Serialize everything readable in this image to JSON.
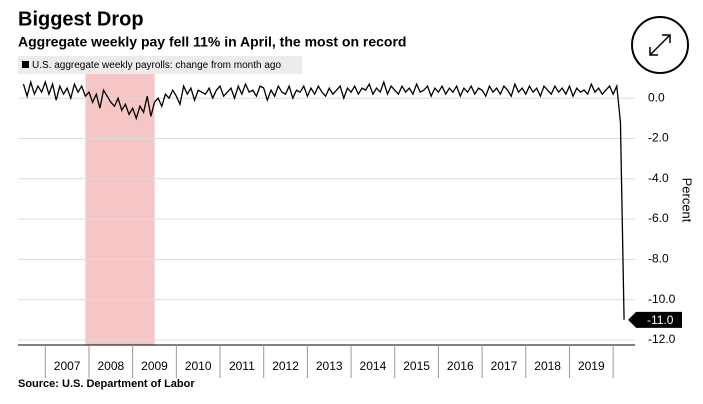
{
  "chart_data": {
    "type": "line",
    "title": "Biggest Drop",
    "subtitle": "Aggregate weekly pay fell 11% in April, the most on record",
    "y_label": "Percent",
    "source": "Source: U.S. Department of Labor",
    "end_label": "-11.0",
    "recession": [
      2007.917,
      2009.5
    ],
    "xlim": [
      2006.375,
      2020.5
    ],
    "ylim": [
      -12.25,
      1.3
    ],
    "yticks": [
      {
        "value": 0,
        "label": "0.0"
      },
      {
        "value": -2,
        "label": "-2.0"
      },
      {
        "value": -4,
        "label": "-4.0"
      },
      {
        "value": -6,
        "label": "-6.0"
      },
      {
        "value": -8,
        "label": "-8.0"
      },
      {
        "value": -10,
        "label": "-10.0"
      },
      {
        "value": -12,
        "label": "-12.0"
      }
    ],
    "xticks": [
      {
        "value": 2007,
        "label": "2007"
      },
      {
        "value": 2008,
        "label": "2008"
      },
      {
        "value": 2009,
        "label": "2009"
      },
      {
        "value": 2010,
        "label": "2010"
      },
      {
        "value": 2011,
        "label": "2011"
      },
      {
        "value": 2012,
        "label": "2012"
      },
      {
        "value": 2013,
        "label": "2013"
      },
      {
        "value": 2014,
        "label": "2014"
      },
      {
        "value": 2015,
        "label": "2015"
      },
      {
        "value": 2016,
        "label": "2016"
      },
      {
        "value": 2017,
        "label": "2017"
      },
      {
        "value": 2018,
        "label": "2018"
      },
      {
        "value": 2019,
        "label": "2019"
      }
    ],
    "grid": true,
    "legend": "top-left",
    "x": [
      2006.5,
      2006.583,
      2006.667,
      2006.75,
      2006.833,
      2006.917,
      2007,
      2007.083,
      2007.167,
      2007.25,
      2007.333,
      2007.417,
      2007.5,
      2007.583,
      2007.667,
      2007.75,
      2007.833,
      2007.917,
      2008,
      2008.083,
      2008.167,
      2008.25,
      2008.333,
      2008.417,
      2008.5,
      2008.583,
      2008.667,
      2008.75,
      2008.833,
      2008.917,
      2009,
      2009.083,
      2009.167,
      2009.25,
      2009.333,
      2009.417,
      2009.5,
      2009.583,
      2009.667,
      2009.75,
      2009.833,
      2009.917,
      2010,
      2010.083,
      2010.167,
      2010.25,
      2010.333,
      2010.417,
      2010.5,
      2010.583,
      2010.667,
      2010.75,
      2010.833,
      2010.917,
      2011,
      2011.083,
      2011.167,
      2011.25,
      2011.333,
      2011.417,
      2011.5,
      2011.583,
      2011.667,
      2011.75,
      2011.833,
      2011.917,
      2012,
      2012.083,
      2012.167,
      2012.25,
      2012.333,
      2012.417,
      2012.5,
      2012.583,
      2012.667,
      2012.75,
      2012.833,
      2012.917,
      2013,
      2013.083,
      2013.167,
      2013.25,
      2013.333,
      2013.417,
      2013.5,
      2013.583,
      2013.667,
      2013.75,
      2013.833,
      2013.917,
      2014,
      2014.083,
      2014.167,
      2014.25,
      2014.333,
      2014.417,
      2014.5,
      2014.583,
      2014.667,
      2014.75,
      2014.833,
      2014.917,
      2015,
      2015.083,
      2015.167,
      2015.25,
      2015.333,
      2015.417,
      2015.5,
      2015.583,
      2015.667,
      2015.75,
      2015.833,
      2015.917,
      2016,
      2016.083,
      2016.167,
      2016.25,
      2016.333,
      2016.417,
      2016.5,
      2016.583,
      2016.667,
      2016.75,
      2016.833,
      2016.917,
      2017,
      2017.083,
      2017.167,
      2017.25,
      2017.333,
      2017.417,
      2017.5,
      2017.583,
      2017.667,
      2017.75,
      2017.833,
      2017.917,
      2018,
      2018.083,
      2018.167,
      2018.25,
      2018.333,
      2018.417,
      2018.5,
      2018.583,
      2018.667,
      2018.75,
      2018.833,
      2018.917,
      2019,
      2019.083,
      2019.167,
      2019.25,
      2019.333,
      2019.417,
      2019.5,
      2019.583,
      2019.667,
      2019.75,
      2019.833,
      2019.917,
      2020,
      2020.083,
      2020.167,
      2020.25
    ],
    "series": [
      {
        "name": "U.S. aggregate weekly payrolls: change from month ago",
        "color": "#000000",
        "values": [
          0.7,
          0.1,
          0.8,
          0.2,
          0.6,
          0.3,
          0.8,
          0.2,
          0.7,
          -0.1,
          0.6,
          0.2,
          0.5,
          0.0,
          0.7,
          0.3,
          0.6,
          0.1,
          0.3,
          -0.2,
          0.2,
          -0.5,
          0.4,
          0.1,
          -0.2,
          -0.4,
          0.0,
          -0.6,
          -0.3,
          -0.8,
          -0.5,
          -1.0,
          -0.4,
          -0.7,
          0.1,
          -0.9,
          -0.2,
          0.0,
          -0.4,
          0.2,
          0.0,
          0.4,
          0.1,
          -0.3,
          0.6,
          0.2,
          0.5,
          -0.1,
          0.4,
          0.3,
          0.2,
          0.5,
          0.0,
          0.4,
          0.6,
          0.1,
          0.3,
          0.5,
          0.0,
          0.6,
          0.2,
          0.7,
          0.3,
          0.4,
          0.1,
          0.6,
          0.5,
          -0.1,
          0.4,
          0.1,
          0.6,
          0.3,
          0.2,
          0.6,
          0.0,
          0.4,
          0.3,
          0.6,
          0.1,
          0.5,
          0.2,
          0.6,
          0.3,
          0.1,
          0.5,
          0.2,
          0.4,
          0.6,
          0.0,
          0.5,
          0.3,
          0.6,
          0.2,
          0.5,
          0.4,
          0.7,
          0.2,
          0.5,
          0.3,
          0.8,
          0.2,
          0.6,
          0.4,
          0.2,
          0.6,
          0.3,
          0.5,
          0.2,
          0.7,
          0.3,
          0.4,
          0.6,
          0.1,
          0.5,
          0.3,
          0.6,
          0.2,
          0.5,
          0.3,
          0.6,
          0.1,
          0.5,
          0.3,
          0.6,
          0.2,
          0.5,
          0.4,
          0.1,
          0.6,
          0.3,
          0.5,
          0.2,
          0.6,
          0.4,
          0.1,
          0.7,
          0.3,
          0.5,
          0.2,
          0.6,
          0.3,
          0.5,
          0.1,
          0.6,
          0.4,
          0.2,
          0.6,
          0.3,
          0.5,
          0.2,
          0.6,
          0.1,
          0.5,
          0.3,
          0.4,
          0.2,
          0.7,
          0.3,
          0.5,
          0.2,
          0.4,
          0.6,
          0.2,
          0.6,
          -1.2,
          -11.0
        ]
      }
    ]
  }
}
